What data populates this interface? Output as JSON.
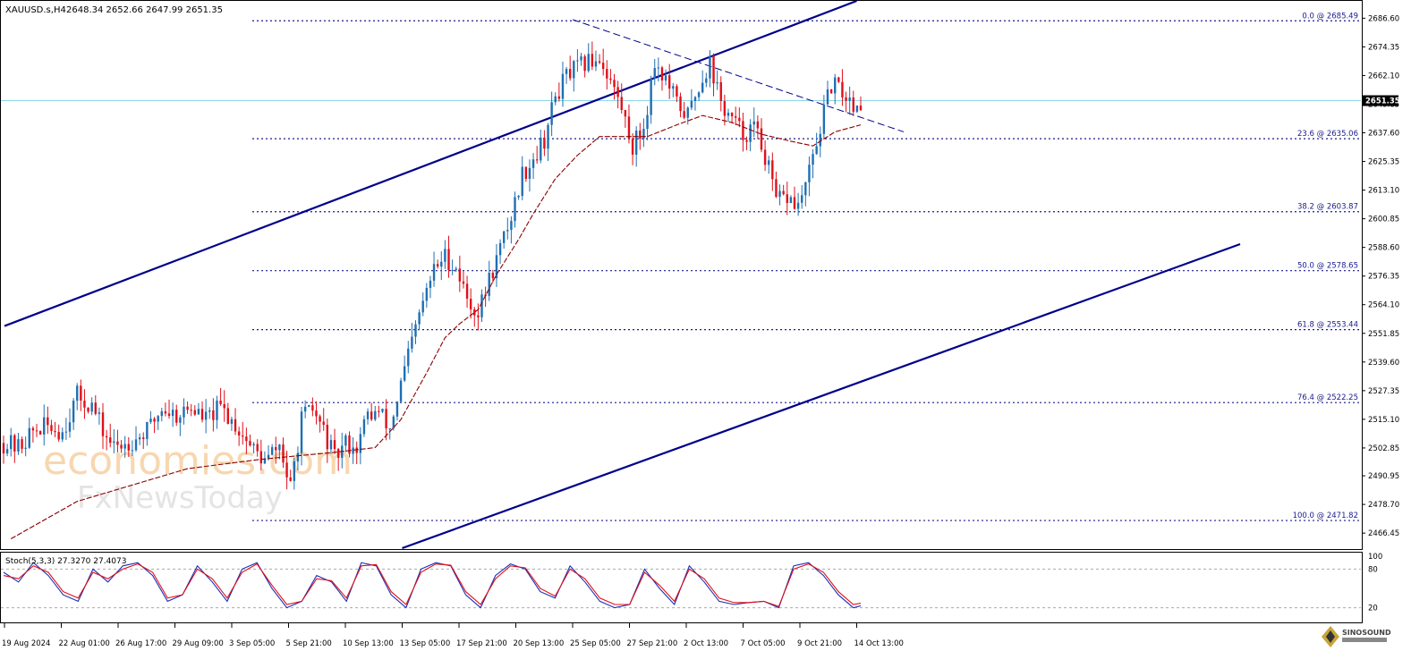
{
  "chart_header": {
    "symbol": "XAUUSD.s,H4",
    "ohlc": "2648.34 2652.66 2647.99 2651.35"
  },
  "watermark": {
    "line1": "economies.com",
    "line2": "FxNewsToday"
  },
  "corner_logo": "SINOSOUND",
  "colors": {
    "bull": "#1f6fb3",
    "bear": "#e0101a",
    "trendline": "#00008b",
    "fib": "#1a1a8c",
    "ma": "#8b0000",
    "stoch_main": "#1a2fb5",
    "stoch_signal": "#e0101a",
    "price_line": "#8fd8e8"
  },
  "chart_data": [
    {
      "type": "candlestick",
      "title": "XAUUSD.s,H4",
      "ylim": [
        2460.0,
        2694.0
      ],
      "y_ticks": [
        "2686.60",
        "2674.35",
        "2662.10",
        "2649.85",
        "2637.60",
        "2625.35",
        "2613.10",
        "2600.85",
        "2588.60",
        "2576.35",
        "2564.10",
        "2551.85",
        "2539.60",
        "2527.35",
        "2515.10",
        "2502.85",
        "2490.95",
        "2478.70",
        "2466.45"
      ],
      "x_labels": [
        "19 Aug 2024",
        "22 Aug 01:00",
        "26 Aug 17:00",
        "29 Aug 09:00",
        "3 Sep 05:00",
        "5 Sep 21:00",
        "10 Sep 13:00",
        "13 Sep 05:00",
        "17 Sep 21:00",
        "20 Sep 13:00",
        "25 Sep 05:00",
        "27 Sep 21:00",
        "2 Oct 13:00",
        "7 Oct 05:00",
        "9 Oct 21:00",
        "14 Oct 13:00"
      ],
      "current_price": "2651.35",
      "fib_levels": [
        {
          "label": "0.0 @ 2685.49",
          "value": 2685.49
        },
        {
          "label": "23.6 @ 2635.06",
          "value": 2635.06
        },
        {
          "label": "38.2 @ 2603.87",
          "value": 2603.87
        },
        {
          "label": "50.0 @ 2578.65",
          "value": 2578.65
        },
        {
          "label": "61.8 @ 2553.44",
          "value": 2553.44
        },
        {
          "label": "76.4 @ 2522.25",
          "value": 2522.25
        },
        {
          "label": "100.0 @ 2471.82",
          "value": 2471.82
        }
      ],
      "anchors": [
        [
          0,
          2505
        ],
        [
          4,
          2503
        ],
        [
          8,
          2510
        ],
        [
          12,
          2512
        ],
        [
          16,
          2510
        ],
        [
          20,
          2525
        ],
        [
          24,
          2521
        ],
        [
          27,
          2510
        ],
        [
          30,
          2503
        ],
        [
          33,
          2505
        ],
        [
          36,
          2507
        ],
        [
          39,
          2510
        ],
        [
          43,
          2520
        ],
        [
          47,
          2517
        ],
        [
          51,
          2520
        ],
        [
          55,
          2515
        ],
        [
          59,
          2520
        ],
        [
          63,
          2513
        ],
        [
          67,
          2504
        ],
        [
          71,
          2497
        ],
        [
          75,
          2504
        ],
        [
          78,
          2485
        ],
        [
          81,
          2515
        ],
        [
          84,
          2519
        ],
        [
          87,
          2510
        ],
        [
          90,
          2498
        ],
        [
          93,
          2505
        ],
        [
          96,
          2503
        ],
        [
          99,
          2517
        ],
        [
          102,
          2518
        ],
        [
          105,
          2511
        ],
        [
          108,
          2530
        ],
        [
          111,
          2548
        ],
        [
          114,
          2565
        ],
        [
          117,
          2579
        ],
        [
          120,
          2585
        ],
        [
          123,
          2580
        ],
        [
          126,
          2567
        ],
        [
          129,
          2560
        ],
        [
          132,
          2575
        ],
        [
          135,
          2588
        ],
        [
          138,
          2602
        ],
        [
          141,
          2620
        ],
        [
          144,
          2627
        ],
        [
          147,
          2635
        ],
        [
          150,
          2653
        ],
        [
          153,
          2662
        ],
        [
          156,
          2665
        ],
        [
          159,
          2668
        ],
        [
          162,
          2670
        ],
        [
          165,
          2660
        ],
        [
          168,
          2648
        ],
        [
          171,
          2632
        ],
        [
          174,
          2640
        ],
        [
          177,
          2668
        ],
        [
          180,
          2660
        ],
        [
          183,
          2650
        ],
        [
          186,
          2645
        ],
        [
          189,
          2658
        ],
        [
          192,
          2668
        ],
        [
          195,
          2650
        ],
        [
          198,
          2643
        ],
        [
          201,
          2637
        ],
        [
          204,
          2640
        ],
        [
          207,
          2628
        ],
        [
          210,
          2608
        ],
        [
          213,
          2610
        ],
        [
          216,
          2606
        ],
        [
          219,
          2620
        ],
        [
          222,
          2640
        ],
        [
          225,
          2658
        ],
        [
          228,
          2655
        ],
        [
          231,
          2650
        ],
        [
          233,
          2651.35
        ]
      ],
      "ma_points": [
        [
          2,
          2464
        ],
        [
          20,
          2480
        ],
        [
          50,
          2494
        ],
        [
          70,
          2498
        ],
        [
          90,
          2501
        ],
        [
          101,
          2503
        ],
        [
          108,
          2515
        ],
        [
          115,
          2535
        ],
        [
          120,
          2550
        ],
        [
          124,
          2556
        ],
        [
          129,
          2562
        ],
        [
          134,
          2577
        ],
        [
          140,
          2592
        ],
        [
          144,
          2603
        ],
        [
          150,
          2618
        ],
        [
          156,
          2628
        ],
        [
          162,
          2636
        ],
        [
          168,
          2636
        ],
        [
          175,
          2636
        ],
        [
          183,
          2641
        ],
        [
          190,
          2645
        ],
        [
          198,
          2642
        ],
        [
          206,
          2637
        ],
        [
          214,
          2634
        ],
        [
          220,
          2632
        ],
        [
          226,
          2638
        ],
        [
          233,
          2641
        ]
      ],
      "trendlines": [
        {
          "points": [
            [
              "19 Aug 2024",
              2555.0
            ],
            [
              "14 Oct 13:00",
              2694.0
            ]
          ]
        },
        {
          "points": [
            [
              "13 Sep 05:00",
              2460.0
            ],
            [
              "17 Oct",
              2590.0
            ]
          ]
        },
        {
          "points": [
            [
              "25 Sep 05:00",
              2686.0
            ],
            [
              "16 Oct",
              2638.0
            ]
          ],
          "dashed": true
        }
      ]
    },
    {
      "type": "line",
      "title": "Stoch(5,3,3) 27.3270 27.4073",
      "ylim": [
        0,
        100
      ],
      "y_ticks": [
        "100",
        "80",
        "20"
      ],
      "levels": [
        80,
        20
      ],
      "series": [
        {
          "values": [
            [
              0,
              75
            ],
            [
              4,
              60
            ],
            [
              8,
              90
            ],
            [
              12,
              70
            ],
            [
              16,
              40
            ],
            [
              20,
              30
            ],
            [
              24,
              80
            ],
            [
              28,
              60
            ],
            [
              32,
              85
            ],
            [
              36,
              90
            ],
            [
              40,
              70
            ],
            [
              44,
              30
            ],
            [
              48,
              40
            ],
            [
              52,
              85
            ],
            [
              56,
              60
            ],
            [
              60,
              30
            ],
            [
              64,
              80
            ],
            [
              68,
              90
            ],
            [
              72,
              50
            ],
            [
              76,
              20
            ],
            [
              80,
              30
            ],
            [
              84,
              70
            ],
            [
              88,
              60
            ],
            [
              92,
              30
            ],
            [
              96,
              90
            ],
            [
              100,
              85
            ],
            [
              104,
              40
            ],
            [
              108,
              20
            ],
            [
              112,
              80
            ],
            [
              116,
              90
            ],
            [
              120,
              85
            ],
            [
              124,
              40
            ],
            [
              128,
              20
            ],
            [
              132,
              70
            ],
            [
              136,
              88
            ],
            [
              140,
              80
            ],
            [
              144,
              45
            ],
            [
              148,
              35
            ],
            [
              152,
              85
            ],
            [
              156,
              60
            ],
            [
              160,
              30
            ],
            [
              164,
              20
            ],
            [
              168,
              25
            ],
            [
              172,
              80
            ],
            [
              176,
              50
            ],
            [
              180,
              25
            ],
            [
              184,
              85
            ],
            [
              188,
              60
            ],
            [
              192,
              30
            ],
            [
              196,
              25
            ],
            [
              200,
              28
            ],
            [
              204,
              30
            ],
            [
              208,
              20
            ],
            [
              212,
              85
            ],
            [
              216,
              90
            ],
            [
              220,
              70
            ],
            [
              224,
              40
            ],
            [
              228,
              20
            ],
            [
              230,
              23
            ]
          ]
        },
        {
          "values": [
            [
              0,
              70
            ],
            [
              4,
              65
            ],
            [
              8,
              85
            ],
            [
              12,
              75
            ],
            [
              16,
              45
            ],
            [
              20,
              35
            ],
            [
              24,
              75
            ],
            [
              28,
              65
            ],
            [
              32,
              80
            ],
            [
              36,
              88
            ],
            [
              40,
              75
            ],
            [
              44,
              35
            ],
            [
              48,
              40
            ],
            [
              52,
              80
            ],
            [
              56,
              65
            ],
            [
              60,
              35
            ],
            [
              64,
              75
            ],
            [
              68,
              88
            ],
            [
              72,
              55
            ],
            [
              76,
              25
            ],
            [
              80,
              30
            ],
            [
              84,
              65
            ],
            [
              88,
              62
            ],
            [
              92,
              35
            ],
            [
              96,
              85
            ],
            [
              100,
              87
            ],
            [
              104,
              45
            ],
            [
              108,
              25
            ],
            [
              112,
              75
            ],
            [
              116,
              88
            ],
            [
              120,
              86
            ],
            [
              124,
              45
            ],
            [
              128,
              25
            ],
            [
              132,
              65
            ],
            [
              136,
              85
            ],
            [
              140,
              82
            ],
            [
              144,
              50
            ],
            [
              148,
              38
            ],
            [
              152,
              80
            ],
            [
              156,
              65
            ],
            [
              160,
              35
            ],
            [
              164,
              25
            ],
            [
              168,
              25
            ],
            [
              172,
              75
            ],
            [
              176,
              55
            ],
            [
              180,
              30
            ],
            [
              184,
              80
            ],
            [
              188,
              65
            ],
            [
              192,
              35
            ],
            [
              196,
              28
            ],
            [
              200,
              28
            ],
            [
              204,
              30
            ],
            [
              208,
              22
            ],
            [
              212,
              80
            ],
            [
              216,
              88
            ],
            [
              220,
              75
            ],
            [
              224,
              45
            ],
            [
              228,
              25
            ],
            [
              230,
              27
            ]
          ]
        }
      ]
    }
  ]
}
